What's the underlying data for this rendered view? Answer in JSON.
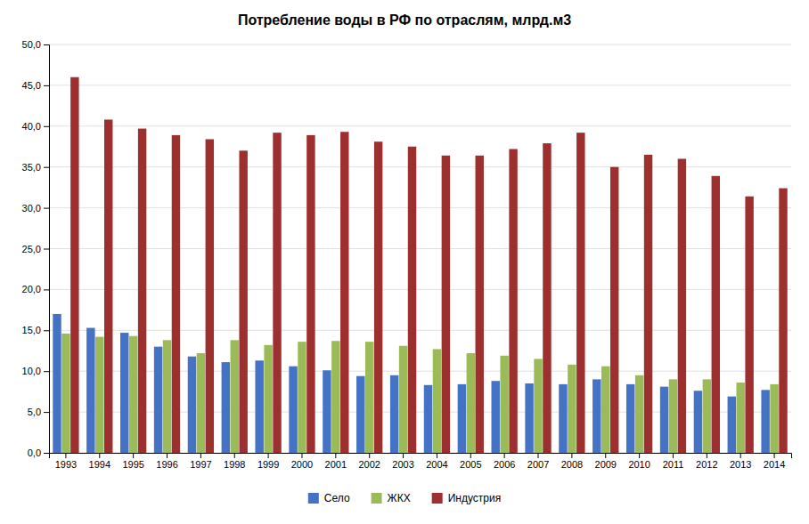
{
  "chart_data": {
    "type": "bar",
    "title": "Потребление воды в РФ по отраслям, млрд.м3",
    "categories": [
      "1993",
      "1994",
      "1995",
      "1996",
      "1997",
      "1998",
      "1999",
      "2000",
      "2001",
      "2002",
      "2003",
      "2004",
      "2005",
      "2006",
      "2007",
      "2008",
      "2009",
      "2010",
      "2011",
      "2012",
      "2013",
      "2014"
    ],
    "series": [
      {
        "name": "Село",
        "color": "#4472C4",
        "values": [
          17.0,
          15.3,
          14.7,
          13.0,
          11.8,
          11.1,
          11.3,
          10.6,
          10.1,
          9.4,
          9.5,
          8.3,
          8.4,
          8.8,
          8.5,
          8.4,
          9.0,
          8.4,
          8.1,
          7.6,
          6.9,
          7.7
        ]
      },
      {
        "name": "ЖКХ",
        "color": "#9BBB59",
        "values": [
          14.6,
          14.2,
          14.3,
          13.8,
          12.2,
          13.8,
          13.2,
          13.6,
          13.7,
          13.6,
          13.1,
          12.7,
          12.2,
          11.9,
          11.5,
          10.8,
          10.6,
          9.5,
          9.0,
          9.0,
          8.6,
          8.4
        ]
      },
      {
        "name": "Индустрия",
        "color": "#9E2F2F",
        "values": [
          46.0,
          40.8,
          39.7,
          38.9,
          38.4,
          37.0,
          39.2,
          38.9,
          39.3,
          38.1,
          37.5,
          36.4,
          36.4,
          37.2,
          37.9,
          39.2,
          35.0,
          36.5,
          36.0,
          33.9,
          31.4,
          32.4
        ]
      }
    ],
    "ylim": [
      0,
      50
    ],
    "yticks": [
      {
        "value": 0.0,
        "label": "0,0"
      },
      {
        "value": 5.0,
        "label": "5,0"
      },
      {
        "value": 10.0,
        "label": "10,0"
      },
      {
        "value": 15.0,
        "label": "15,0"
      },
      {
        "value": 20.0,
        "label": "20,0"
      },
      {
        "value": 25.0,
        "label": "25,0"
      },
      {
        "value": 30.0,
        "label": "30,0"
      },
      {
        "value": 35.0,
        "label": "35,0"
      },
      {
        "value": 40.0,
        "label": "40,0"
      },
      {
        "value": 45.0,
        "label": "45,0"
      },
      {
        "value": 50.0,
        "label": "50,0"
      }
    ],
    "grid": true,
    "legend": "bottom"
  }
}
